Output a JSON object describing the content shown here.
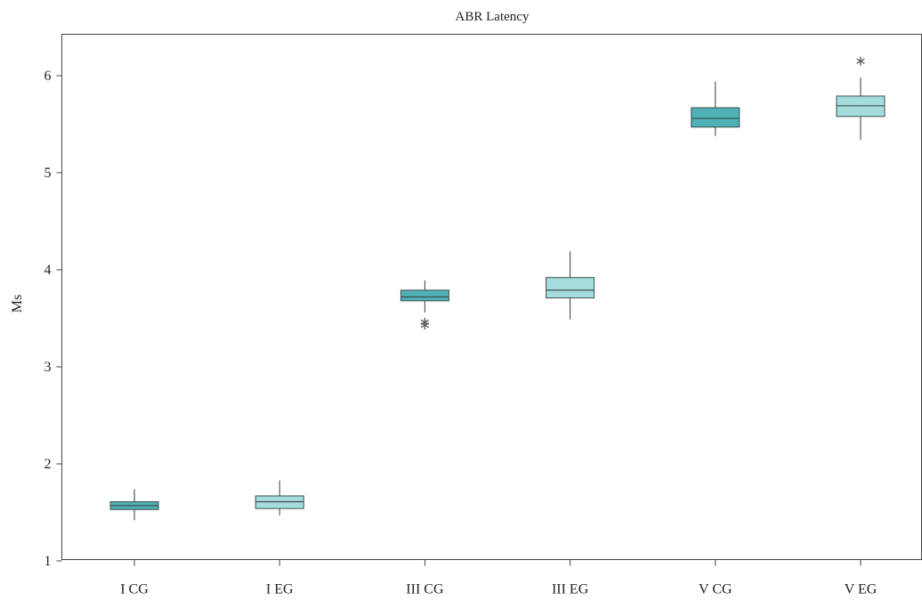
{
  "chart_data": {
    "type": "box",
    "title": "ABR Latency",
    "xlabel": "",
    "ylabel": "Ms",
    "ylim": [
      0.95,
      6.45
    ],
    "yticks": [
      1,
      2,
      3,
      4,
      5,
      6
    ],
    "ytick_labels": [
      "1",
      "2",
      "3",
      "4",
      "5",
      "6"
    ],
    "categories": [
      "I CG",
      "I EG",
      "III CG",
      "III EG",
      "V CG",
      "V EG"
    ],
    "grid": false,
    "series": [
      {
        "category": "I CG",
        "group": "CG",
        "whisker_low": 1.42,
        "q1": 1.53,
        "median": 1.57,
        "q3": 1.61,
        "whisker_high": 1.74,
        "outliers": []
      },
      {
        "category": "I EG",
        "group": "EG",
        "whisker_low": 1.47,
        "q1": 1.54,
        "median": 1.61,
        "q3": 1.67,
        "whisker_high": 1.83,
        "outliers": []
      },
      {
        "category": "III CG",
        "group": "CG",
        "whisker_low": 3.56,
        "q1": 3.68,
        "median": 3.72,
        "q3": 3.79,
        "whisker_high": 3.89,
        "outliers": [
          3.43,
          3.46
        ]
      },
      {
        "category": "III EG",
        "group": "EG",
        "whisker_low": 3.49,
        "q1": 3.71,
        "median": 3.79,
        "q3": 3.92,
        "whisker_high": 4.19,
        "outliers": []
      },
      {
        "category": "V CG",
        "group": "CG",
        "whisker_low": 5.38,
        "q1": 5.47,
        "median": 5.56,
        "q3": 5.67,
        "whisker_high": 5.94,
        "outliers": []
      },
      {
        "category": "V EG",
        "group": "EG",
        "whisker_low": 5.34,
        "q1": 5.58,
        "median": 5.69,
        "q3": 5.79,
        "whisker_high": 5.98,
        "outliers": [
          6.15
        ]
      }
    ],
    "colors": {
      "CG": "#4fb0b5",
      "EG": "#a6dcdb",
      "box_edge": "#3c4f52",
      "whisker": "#3a3a3a",
      "outlier": "#555555",
      "axis": "#444444"
    }
  }
}
